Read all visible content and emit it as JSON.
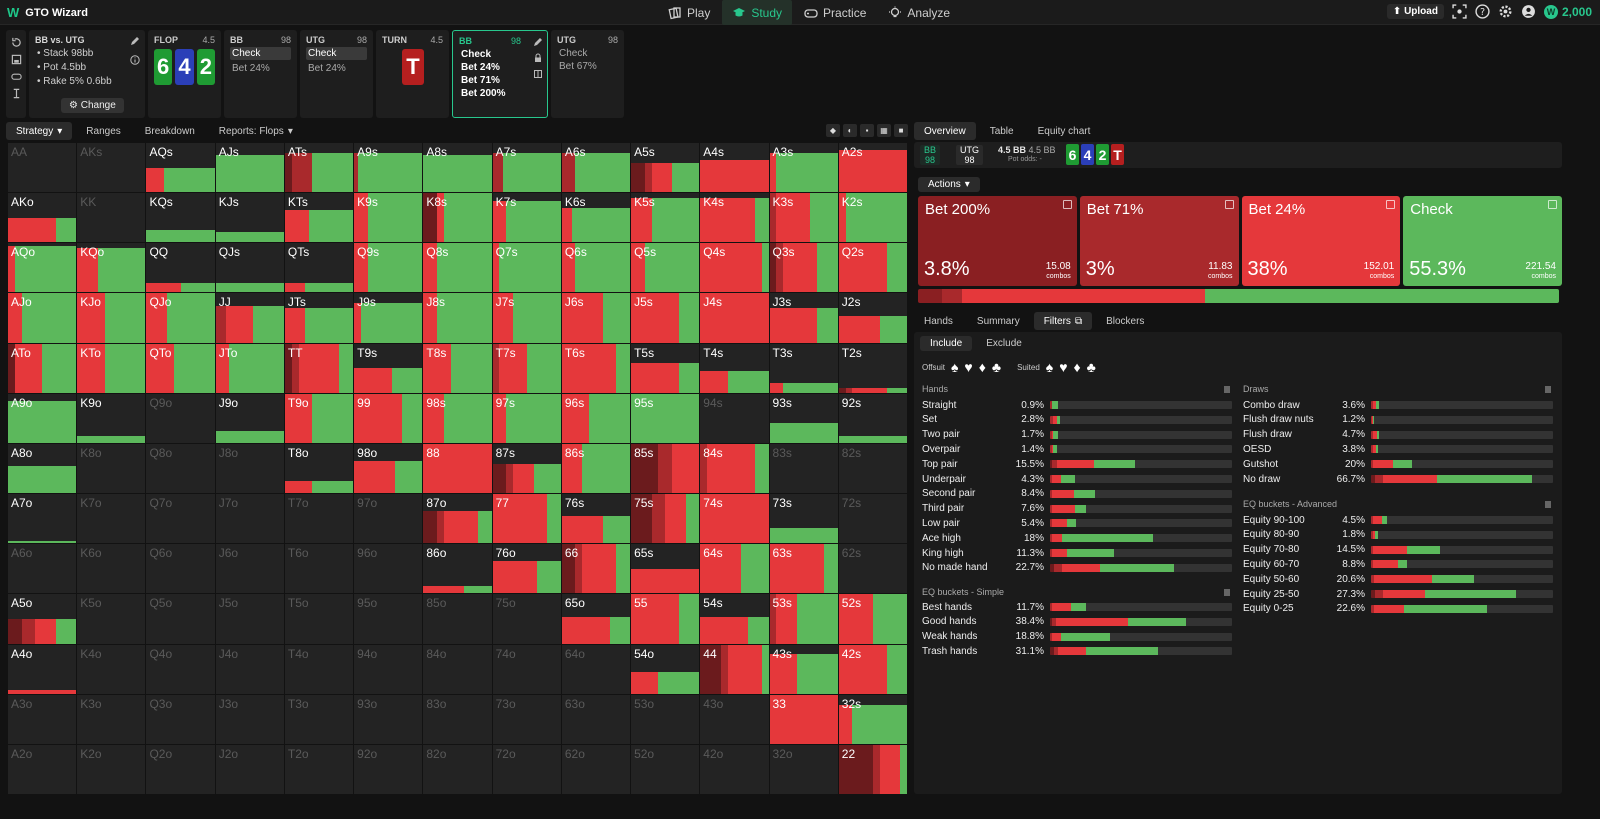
{
  "app": {
    "title": "GTO Wizard",
    "nav": [
      "Play",
      "Study",
      "Practice",
      "Analyze"
    ],
    "upload": "Upload",
    "coins": "2,000"
  },
  "info": {
    "title": "BB vs. UTG",
    "lines": [
      "Stack 98bb",
      "Pot 4.5bb",
      "Rake 5% 0.6bb"
    ],
    "change": "Change"
  },
  "tree": {
    "flop": {
      "label": "FLOP",
      "pot": "4.5",
      "cards": [
        "6",
        "4",
        "2"
      ]
    },
    "bb1": {
      "pos": "BB",
      "stack": "98",
      "acts": [
        "Check",
        "Bet 24%"
      ]
    },
    "utg1": {
      "pos": "UTG",
      "stack": "98",
      "acts": [
        "Check",
        "Bet 24%"
      ]
    },
    "turn": {
      "label": "TURN",
      "pot": "4.5",
      "card": "T"
    },
    "bb2": {
      "pos": "BB",
      "stack": "98",
      "acts": [
        "Check",
        "Bet 24%",
        "Bet 71%",
        "Bet 200%"
      ]
    },
    "utg2": {
      "pos": "UTG",
      "stack": "98",
      "acts": [
        "Check",
        "Bet 67%"
      ]
    }
  },
  "left_tabs": [
    "Strategy",
    "Ranges",
    "Breakdown",
    "Reports: Flops"
  ],
  "right_tabs": [
    "Overview",
    "Table",
    "Equity chart"
  ],
  "summary": {
    "bb": "BB",
    "bb_stack": "98",
    "utg": "UTG",
    "utg_stack": "98",
    "pot1": "4.5 BB",
    "pot2": "4.5 BB",
    "pot_odds": "Pot odds: -",
    "cards": [
      "6",
      "4",
      "2",
      "T"
    ]
  },
  "actions_label": "Actions",
  "actions": [
    {
      "name": "Bet 200%",
      "pct": "3.8%",
      "combos": "15.08",
      "unit": "combos",
      "color": "#8a1f22",
      "val": 3.8
    },
    {
      "name": "Bet 71%",
      "pct": "3%",
      "combos": "11.83",
      "unit": "combos",
      "color": "#a9292c",
      "val": 3.0
    },
    {
      "name": "Bet 24%",
      "pct": "38%",
      "combos": "152.01",
      "unit": "combos",
      "color": "#e5383b",
      "val": 38
    },
    {
      "name": "Check",
      "pct": "55.3%",
      "combos": "221.54",
      "unit": "combos",
      "color": "#5cb85c",
      "val": 55.3
    }
  ],
  "sub_tabs": [
    "Hands",
    "Summary",
    "Filters",
    "Blockers"
  ],
  "filters": {
    "include": "Include",
    "exclude": "Exclude",
    "offsuit": "Offsuit",
    "suited": "Suited",
    "hands_title": "Hands",
    "draws_title": "Draws",
    "eq_simple_title": "EQ buckets - Simple",
    "eq_adv_title": "EQ buckets - Advanced",
    "hands": [
      {
        "n": "Straight",
        "p": "0.9%",
        "d": [
          0,
          0.3,
          0,
          0.7
        ]
      },
      {
        "n": "Set",
        "p": "2.8%",
        "d": [
          0,
          0.4,
          0.4,
          0.4
        ]
      },
      {
        "n": "Two pair",
        "p": "1.7%",
        "d": [
          0,
          0.2,
          0.2,
          0.6
        ]
      },
      {
        "n": "Overpair",
        "p": "1.4%",
        "d": [
          0,
          0.2,
          0.2,
          0.4
        ]
      },
      {
        "n": "Top pair",
        "p": "15.5%",
        "d": [
          0.3,
          0.5,
          4.5,
          5.0
        ]
      },
      {
        "n": "Underpair",
        "p": "4.3%",
        "d": [
          0,
          0.3,
          1.0,
          1.7
        ]
      },
      {
        "n": "Second pair",
        "p": "8.4%",
        "d": [
          0,
          0.3,
          2.6,
          2.6
        ]
      },
      {
        "n": "Third pair",
        "p": "7.6%",
        "d": [
          0,
          0.2,
          2.8,
          1.4
        ]
      },
      {
        "n": "Low pair",
        "p": "5.4%",
        "d": [
          0,
          0.2,
          1.8,
          1.2
        ]
      },
      {
        "n": "Ace high",
        "p": "18%",
        "d": [
          0,
          0.3,
          1.2,
          11
        ]
      },
      {
        "n": "King high",
        "p": "11.3%",
        "d": [
          0,
          0.3,
          1.7,
          5.7
        ]
      },
      {
        "n": "No made hand",
        "p": "22.7%",
        "d": [
          0.5,
          1.0,
          4.5,
          9.0
        ]
      }
    ],
    "eq_simple": [
      {
        "n": "Best hands",
        "p": "11.7%",
        "d": [
          0,
          0.3,
          2.3,
          1.8
        ]
      },
      {
        "n": "Good hands",
        "p": "38.4%",
        "d": [
          0.3,
          0.4,
          8.7,
          7.0
        ]
      },
      {
        "n": "Weak hands",
        "p": "18.8%",
        "d": [
          0,
          0.3,
          1.0,
          6.0
        ]
      },
      {
        "n": "Trash hands",
        "p": "31.1%",
        "d": [
          0.5,
          0.5,
          3.4,
          8.7
        ]
      }
    ],
    "draws": [
      {
        "n": "Combo draw",
        "p": "3.6%",
        "d": [
          0,
          0.3,
          0.3,
          0.4
        ]
      },
      {
        "n": "Flush draw nuts",
        "p": "1.2%",
        "d": [
          0,
          0.1,
          0.1,
          0.2
        ]
      },
      {
        "n": "Flush draw",
        "p": "4.7%",
        "d": [
          0,
          0.3,
          0.4,
          0.3
        ]
      },
      {
        "n": "OESD",
        "p": "3.8%",
        "d": [
          0,
          0.2,
          0.4,
          0.2
        ]
      },
      {
        "n": "Gutshot",
        "p": "20%",
        "d": [
          0,
          0.3,
          2.4,
          2.2
        ]
      },
      {
        "n": "No draw",
        "p": "66.7%",
        "d": [
          0.5,
          1.0,
          6.5,
          11.5
        ]
      }
    ],
    "eq_adv": [
      {
        "n": "Equity 90-100",
        "p": "4.5%",
        "d": [
          0,
          0.3,
          1.0,
          0.6
        ]
      },
      {
        "n": "Equity 80-90",
        "p": "1.8%",
        "d": [
          0,
          0.2,
          0.3,
          0.4
        ]
      },
      {
        "n": "Equity 70-80",
        "p": "14.5%",
        "d": [
          0,
          0.3,
          4.0,
          4.0
        ]
      },
      {
        "n": "Equity 60-70",
        "p": "8.8%",
        "d": [
          0,
          0.3,
          3.0,
          1.0
        ]
      },
      {
        "n": "Equity 50-60",
        "p": "20.6%",
        "d": [
          0,
          0.4,
          7.0,
          5.0
        ]
      },
      {
        "n": "Equity 25-50",
        "p": "27.3%",
        "d": [
          0.5,
          1.0,
          5.0,
          11
        ]
      },
      {
        "n": "Equity 0-25",
        "p": "22.6%",
        "d": [
          0,
          0.4,
          3.6,
          10
        ]
      }
    ]
  },
  "matrix": {
    "ranks": [
      "A",
      "K",
      "Q",
      "J",
      "T",
      "9",
      "8",
      "7",
      "6",
      "5",
      "4",
      "3",
      "2"
    ],
    "zero": [
      "AA",
      "AKs",
      "KK",
      "Q9o",
      "94s",
      "83s",
      "82s",
      "K8o",
      "Q8o",
      "J8o",
      "72s",
      "K7o",
      "Q7o",
      "J7o",
      "T7o",
      "A6o",
      "K6o",
      "Q6o",
      "J6o",
      "T6o",
      "96o",
      "62s",
      "K5o",
      "Q5o",
      "J5o",
      "T5o",
      "95o",
      "85o",
      "75o",
      "K4o",
      "Q4o",
      "J4o",
      "T4o",
      "94o",
      "84o",
      "74o",
      "64o",
      "A3o",
      "K3o",
      "Q3o",
      "J3o",
      "T3o",
      "93o",
      "83o",
      "73o",
      "63o",
      "53o",
      "43o",
      "A2o",
      "K2o",
      "Q2o",
      "J2o",
      "T2o",
      "92o",
      "82o",
      "72o",
      "62o",
      "52o",
      "42o",
      "32o"
    ],
    "cells": {
      "AQs": [
        0.5,
        [
          0,
          0,
          0.25,
          0.75
        ]
      ],
      "AJs": [
        0.75,
        [
          0,
          0,
          0,
          1
        ]
      ],
      "ATs": [
        0.8,
        [
          0.1,
          0.3,
          0,
          0.6
        ]
      ],
      "A9s": [
        0.8,
        [
          0,
          0.05,
          0,
          0.95
        ]
      ],
      "A8s": [
        0.75,
        [
          0,
          0,
          0,
          1
        ]
      ],
      "A7s": [
        0.8,
        [
          0,
          0.15,
          0,
          0.85
        ]
      ],
      "A6s": [
        0.8,
        [
          0,
          0.2,
          0,
          0.8
        ]
      ],
      "A5s": [
        0.6,
        [
          0.2,
          0.1,
          0.3,
          0.4
        ]
      ],
      "A4s": [
        0.65,
        [
          0,
          0,
          1,
          0
        ]
      ],
      "A3s": [
        0.8,
        [
          0,
          0,
          0.1,
          0.9
        ]
      ],
      "A2s": [
        0.85,
        [
          0,
          0,
          1,
          0
        ]
      ],
      "AKo": [
        0.5,
        [
          0,
          0,
          0.7,
          0.3
        ]
      ],
      "KQs": [
        0.25,
        [
          0,
          0,
          0,
          1
        ]
      ],
      "KJs": [
        0.2,
        [
          0,
          0,
          0,
          1
        ]
      ],
      "KTs": [
        0.65,
        [
          0,
          0,
          0.35,
          0.65
        ]
      ],
      "K9s": [
        1,
        [
          0,
          0,
          0.2,
          0.8
        ]
      ],
      "K8s": [
        1,
        [
          0.2,
          0,
          0.1,
          0.7
        ]
      ],
      "K7s": [
        0.85,
        [
          0,
          0,
          0.2,
          0.8
        ]
      ],
      "K6s": [
        0.7,
        [
          0,
          0,
          0.15,
          0.85
        ]
      ],
      "K5s": [
        0.9,
        [
          0,
          0,
          0.3,
          0.7
        ]
      ],
      "K4s": [
        0.9,
        [
          0,
          0,
          0.8,
          0.2
        ]
      ],
      "K3s": [
        1,
        [
          0,
          0.1,
          0.5,
          0.4
        ]
      ],
      "K2s": [
        1,
        [
          0,
          0,
          0.1,
          0.9
        ]
      ],
      "AQo": [
        0.95,
        [
          0,
          0,
          0.1,
          0.9
        ]
      ],
      "KQo": [
        0.9,
        [
          0,
          0,
          0.3,
          0.7
        ]
      ],
      "QQ": [
        0.2,
        [
          0,
          0,
          0.5,
          0.5
        ]
      ],
      "QJs": [
        0.2,
        [
          0,
          0,
          0,
          1
        ]
      ],
      "QTs": [
        0.2,
        [
          0,
          0,
          0.3,
          0.7
        ]
      ],
      "Q9s": [
        1,
        [
          0,
          0,
          0.2,
          0.8
        ]
      ],
      "Q8s": [
        1,
        [
          0,
          0,
          0.2,
          0.8
        ]
      ],
      "Q7s": [
        1,
        [
          0,
          0,
          0.1,
          0.9
        ]
      ],
      "Q6s": [
        1,
        [
          0,
          0,
          0.2,
          0.8
        ]
      ],
      "Q5s": [
        1,
        [
          0,
          0,
          0.2,
          0.8
        ]
      ],
      "Q4s": [
        1,
        [
          0,
          0,
          0.9,
          0.1
        ]
      ],
      "Q3s": [
        1,
        [
          0.1,
          0.1,
          0.5,
          0.3
        ]
      ],
      "Q2s": [
        1,
        [
          0,
          0,
          0.7,
          0.3
        ]
      ],
      "AJo": [
        1,
        [
          0,
          0,
          0.2,
          0.8
        ]
      ],
      "KJo": [
        1,
        [
          0,
          0,
          0.4,
          0.6
        ]
      ],
      "QJo": [
        1,
        [
          0,
          0,
          0.3,
          0.7
        ]
      ],
      "JJ": [
        0.75,
        [
          0,
          0.15,
          0.4,
          0.45
        ]
      ],
      "JTs": [
        0.7,
        [
          0,
          0,
          0.3,
          0.7
        ]
      ],
      "J9s": [
        0.8,
        [
          0,
          0,
          0.1,
          0.9
        ]
      ],
      "J8s": [
        1,
        [
          0,
          0,
          0.2,
          0.8
        ]
      ],
      "J7s": [
        1,
        [
          0,
          0,
          0.3,
          0.7
        ]
      ],
      "J6s": [
        1,
        [
          0,
          0,
          0.6,
          0.4
        ]
      ],
      "J5s": [
        1,
        [
          0,
          0,
          0.7,
          0.3
        ]
      ],
      "J4s": [
        1,
        [
          0,
          0,
          1,
          0
        ]
      ],
      "J3s": [
        0.7,
        [
          0,
          0,
          0.7,
          0.3
        ]
      ],
      "J2s": [
        0.55,
        [
          0,
          0,
          0.6,
          0.4
        ]
      ],
      "ATo": [
        1,
        [
          0.1,
          0,
          0.4,
          0.5
        ]
      ],
      "KTo": [
        1,
        [
          0,
          0,
          0.4,
          0.6
        ]
      ],
      "QTo": [
        1,
        [
          0,
          0,
          0.4,
          0.6
        ]
      ],
      "JTo": [
        1,
        [
          0,
          0,
          0.2,
          0.8
        ]
      ],
      "TT": [
        1,
        [
          0.1,
          0.1,
          0.6,
          0.2
        ]
      ],
      "T9s": [
        0.5,
        [
          0,
          0,
          0.55,
          0.45
        ]
      ],
      "T8s": [
        1,
        [
          0,
          0,
          0.4,
          0.6
        ]
      ],
      "T7s": [
        1,
        [
          0,
          0.1,
          0.4,
          0.5
        ]
      ],
      "T6s": [
        1,
        [
          0,
          0,
          0.8,
          0.2
        ]
      ],
      "T5s": [
        0.6,
        [
          0,
          0,
          0.7,
          0.3
        ]
      ],
      "T4s": [
        0.45,
        [
          0,
          0,
          0.4,
          0.6
        ]
      ],
      "T3s": [
        0.2,
        [
          0,
          0,
          0.2,
          0.8
        ]
      ],
      "T2s": [
        0.1,
        [
          0.1,
          0.1,
          0.5,
          0.3
        ]
      ],
      "A9o": [
        0.85,
        [
          0,
          0,
          0,
          1
        ]
      ],
      "K9o": [
        0.15,
        [
          0,
          0,
          0,
          1
        ]
      ],
      "J9o": [
        0.25,
        [
          0,
          0,
          0,
          1
        ]
      ],
      "T9o": [
        1,
        [
          0,
          0,
          0.4,
          0.6
        ]
      ],
      "99": [
        1,
        [
          0,
          0,
          0.7,
          0.3
        ]
      ],
      "98s": [
        1,
        [
          0,
          0,
          0.3,
          0.7
        ]
      ],
      "97s": [
        1,
        [
          0,
          0,
          0.2,
          0.8
        ]
      ],
      "96s": [
        1,
        [
          0,
          0,
          0.4,
          0.6
        ]
      ],
      "95s": [
        1,
        [
          0,
          0,
          0,
          1
        ]
      ],
      "93s": [
        0.4,
        [
          0,
          0,
          0,
          1
        ]
      ],
      "92s": [
        0.15,
        [
          0,
          0,
          0,
          1
        ]
      ],
      "A8o": [
        0.55,
        [
          0,
          0,
          0,
          1
        ]
      ],
      "T8o": [
        0.25,
        [
          0,
          0,
          0.4,
          0.6
        ]
      ],
      "98o": [
        0.65,
        [
          0,
          0,
          0.6,
          0.4
        ]
      ],
      "88": [
        1,
        [
          0,
          0,
          1,
          0
        ]
      ],
      "87s": [
        0.6,
        [
          0.2,
          0.1,
          0.3,
          0.4
        ]
      ],
      "86s": [
        1,
        [
          0,
          0,
          0.3,
          0.7
        ]
      ],
      "85s": [
        1,
        [
          0.4,
          0.2,
          0.4,
          0
        ]
      ],
      "84s": [
        1,
        [
          0,
          0.1,
          0.7,
          0.2
        ]
      ],
      "A7o": [
        0.05,
        [
          0,
          0,
          0,
          1
        ]
      ],
      "87o": [
        0.65,
        [
          0.2,
          0.1,
          0.5,
          0.2
        ]
      ],
      "77": [
        1,
        [
          0,
          0,
          0.8,
          0.2
        ]
      ],
      "76s": [
        0.55,
        [
          0,
          0,
          0.6,
          0.4
        ]
      ],
      "75s": [
        1,
        [
          0.3,
          0.2,
          0.3,
          0.2
        ]
      ],
      "74s": [
        1,
        [
          0,
          0,
          1,
          0
        ]
      ],
      "73s": [
        0.3,
        [
          0,
          0,
          0,
          1
        ]
      ],
      "86o": [
        0.15,
        [
          0,
          0,
          0.6,
          0.4
        ]
      ],
      "76o": [
        0.65,
        [
          0,
          0,
          0.65,
          0.35
        ]
      ],
      "66": [
        1,
        [
          0.2,
          0.1,
          0.5,
          0.2
        ]
      ],
      "65s": [
        0.5,
        [
          0,
          0,
          1,
          0
        ]
      ],
      "64s": [
        1,
        [
          0,
          0,
          0.6,
          0.4
        ]
      ],
      "63s": [
        1,
        [
          0,
          0,
          0.8,
          0.2
        ]
      ],
      "A5o": [
        0.5,
        [
          0.2,
          0.2,
          0.3,
          0.3
        ]
      ],
      "65o": [
        0.55,
        [
          0,
          0,
          0.7,
          0.3
        ]
      ],
      "55": [
        1,
        [
          0,
          0,
          0.7,
          0.3
        ]
      ],
      "54s": [
        0.55,
        [
          0,
          0,
          0.7,
          0.3
        ]
      ],
      "53s": [
        1,
        [
          0,
          0.1,
          0.3,
          0.6
        ]
      ],
      "52s": [
        1,
        [
          0,
          0,
          0.5,
          0.5
        ]
      ],
      "A4o": [
        0.08,
        [
          0,
          0,
          1,
          0
        ]
      ],
      "54o": [
        0.45,
        [
          0,
          0,
          0.4,
          0.6
        ]
      ],
      "44": [
        1,
        [
          0.3,
          0.1,
          0.5,
          0.1
        ]
      ],
      "43s": [
        0.8,
        [
          0,
          0,
          0.4,
          0.6
        ]
      ],
      "42s": [
        1,
        [
          0,
          0,
          0.7,
          0.3
        ]
      ],
      "33": [
        1,
        [
          0,
          0,
          1,
          0
        ]
      ],
      "32s": [
        0.8,
        [
          0,
          0,
          0.2,
          0.8
        ]
      ],
      "22": [
        1,
        [
          0.5,
          0.1,
          0.3,
          0.1
        ]
      ]
    }
  }
}
